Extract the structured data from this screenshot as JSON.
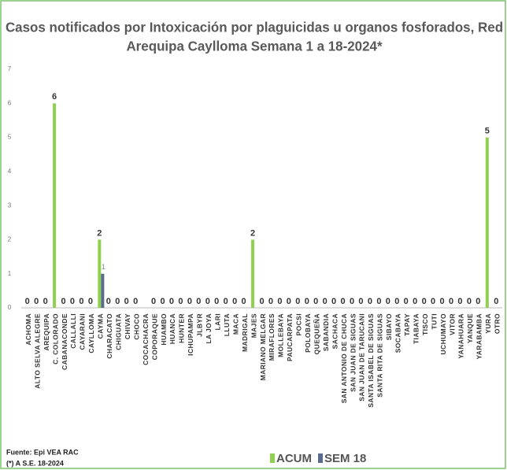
{
  "chart_data": {
    "type": "bar",
    "title": [
      "Casos notificados por Intoxicación por plaguicidas u organos fosforados, Red",
      "Arequipa Caylloma Semana 1 a 18-2024*"
    ],
    "categories": [
      "ACHOMA",
      "ALTO SELVA ALEGRE",
      "AREQUIPA",
      "C. COLORADO",
      "CABANACONDE",
      "CALLALLI",
      "CAYARANI",
      "CAYLLOMA",
      "CAYMA",
      "CHARACATO",
      "CHIGUATA",
      "CHIVAY",
      "CHOCO",
      "COCACHACRA",
      "COPORAQUE",
      "HUAMBO",
      "HUANCA",
      "HUNTER",
      "ICHUPAMPA",
      "JLBYR",
      "LA JOYA",
      "LARI",
      "LLUTA",
      "MACA",
      "MADRIGAL",
      "MAJES",
      "MARIANO MELGAR",
      "MIRAFLORES",
      "MOLLEBAYA",
      "PAUCARPATA",
      "POCSI",
      "POLOBAYA",
      "QUEQUEÑA",
      "SABANDIA",
      "SACHACA",
      "SAN ANTONIO DE CHUCA",
      "SAN JUAN DE SIGUAS",
      "SAN JUAN DE TARUCANI",
      "SANTA ISABEL DE SIGUAS",
      "SANTA RITA DE SIGUAS",
      "SIBAYO",
      "SOCABAYA",
      "TAPAY",
      "TIABAYA",
      "TISCO",
      "TUTI",
      "UCHUMAYO",
      "VITOR",
      "YANAHUARA",
      "YANQUE",
      "YARABAMBA",
      "YURA",
      "OTRO"
    ],
    "series": [
      {
        "name": "ACUM",
        "color": "#8fd14f",
        "values": [
          0,
          0,
          0,
          6,
          0,
          0,
          0,
          0,
          2,
          0,
          0,
          0,
          0,
          null,
          0,
          0,
          0,
          0,
          0,
          0,
          0,
          0,
          0,
          0,
          0,
          2,
          0,
          0,
          0,
          0,
          0,
          0,
          0,
          0,
          0,
          0,
          0,
          0,
          0,
          0,
          0,
          0,
          0,
          0,
          0,
          0,
          0,
          0,
          0,
          0,
          0,
          5,
          0
        ]
      },
      {
        "name": "SEM 18",
        "color": "#5b6b8c",
        "values": [
          null,
          null,
          null,
          null,
          null,
          null,
          null,
          null,
          1,
          null,
          null,
          null,
          null,
          null,
          null,
          null,
          null,
          null,
          null,
          null,
          null,
          null,
          null,
          null,
          null,
          null,
          null,
          null,
          null,
          null,
          null,
          null,
          null,
          null,
          null,
          null,
          null,
          null,
          null,
          null,
          null,
          null,
          null,
          null,
          null,
          null,
          null,
          null,
          null,
          null,
          null,
          null,
          null
        ]
      }
    ],
    "ylim": [
      0,
      7
    ],
    "yticks": [
      0,
      1,
      2,
      3,
      4,
      5,
      6,
      7
    ],
    "grid": false,
    "footnotes": [
      "Fuente: Epi VEA RAC",
      "(*) A S.E. 18-2024"
    ]
  }
}
